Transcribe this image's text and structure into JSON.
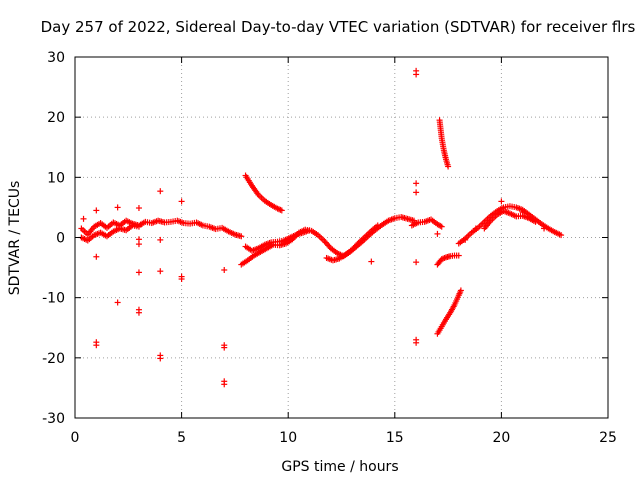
{
  "chart_data": {
    "type": "scatter",
    "title": "Day 257 of 2022, Sidereal Day-to-day VTEC variation (SDTVAR) for receiver flrs",
    "xlabel": "GPS time / hours",
    "ylabel": "SDTVAR / TECUs",
    "xlim": [
      0,
      25
    ],
    "ylim": [
      -30,
      30
    ],
    "xticks": [
      0,
      5,
      10,
      15,
      20,
      25
    ],
    "yticks": [
      -30,
      -20,
      -10,
      0,
      10,
      20,
      30
    ],
    "xtick_labels": [
      "0",
      "5",
      "10",
      "15",
      "20",
      "25"
    ],
    "ytick_labels": [
      "-30",
      "-20",
      "-10",
      "0",
      "10",
      "20",
      "30"
    ],
    "grid": true,
    "marker": "+",
    "series": [
      {
        "name": "SDTVAR",
        "color": "#ff0000",
        "segments": [
          [
            [
              0.3,
              1.5
            ],
            [
              0.6,
              0.5
            ],
            [
              0.9,
              1.8
            ],
            [
              1.2,
              2.4
            ],
            [
              1.5,
              1.6
            ],
            [
              1.8,
              2.5
            ],
            [
              2.1,
              2.0
            ],
            [
              2.4,
              2.8
            ],
            [
              2.7,
              2.3
            ],
            [
              3.0,
              2.0
            ],
            [
              3.3,
              2.6
            ],
            [
              3.6,
              2.4
            ],
            [
              3.9,
              2.8
            ],
            [
              4.2,
              2.5
            ],
            [
              4.5,
              2.6
            ],
            [
              4.8,
              2.8
            ],
            [
              5.1,
              2.4
            ],
            [
              5.4,
              2.3
            ],
            [
              5.7,
              2.5
            ],
            [
              6.0,
              2.0
            ],
            [
              6.3,
              1.8
            ],
            [
              6.6,
              1.4
            ],
            [
              6.9,
              1.6
            ],
            [
              7.2,
              1.0
            ],
            [
              7.5,
              0.5
            ],
            [
              7.8,
              0.2
            ]
          ],
          [
            [
              0.3,
              0.0
            ],
            [
              0.6,
              -0.5
            ],
            [
              0.9,
              0.4
            ],
            [
              1.2,
              0.8
            ],
            [
              1.5,
              0.2
            ],
            [
              1.8,
              1.0
            ],
            [
              2.1,
              1.5
            ],
            [
              2.4,
              1.2
            ],
            [
              2.7,
              2.0
            ],
            [
              3.0,
              1.8
            ]
          ],
          [
            [
              7.8,
              -4.5
            ],
            [
              8.1,
              -3.8
            ],
            [
              8.4,
              -3.0
            ],
            [
              8.7,
              -2.4
            ],
            [
              9.0,
              -1.8
            ],
            [
              9.3,
              -1.2
            ],
            [
              9.6,
              -1.3
            ],
            [
              9.9,
              -1.0
            ],
            [
              10.2,
              -0.3
            ],
            [
              10.5,
              0.8
            ],
            [
              10.8,
              1.3
            ],
            [
              11.1,
              1.1
            ],
            [
              11.4,
              0.4
            ],
            [
              11.7,
              -0.6
            ],
            [
              12.0,
              -1.8
            ],
            [
              12.3,
              -2.6
            ],
            [
              12.6,
              -3.1
            ],
            [
              12.9,
              -2.4
            ],
            [
              13.2,
              -1.5
            ],
            [
              13.5,
              -0.6
            ],
            [
              13.8,
              0.4
            ],
            [
              14.1,
              1.3
            ],
            [
              14.4,
              2.1
            ],
            [
              14.7,
              2.8
            ],
            [
              15.0,
              3.2
            ],
            [
              15.3,
              3.4
            ],
            [
              15.6,
              3.1
            ],
            [
              15.9,
              2.8
            ]
          ],
          [
            [
              8.0,
              -1.5
            ],
            [
              8.3,
              -2.2
            ],
            [
              8.6,
              -1.8
            ],
            [
              8.9,
              -1.2
            ],
            [
              9.2,
              -0.8
            ],
            [
              9.5,
              -0.7
            ],
            [
              9.8,
              -0.5
            ],
            [
              10.1,
              0.0
            ],
            [
              10.4,
              0.5
            ],
            [
              10.7,
              0.8
            ],
            [
              11.0,
              1.2
            ]
          ],
          [
            [
              11.8,
              -3.4
            ],
            [
              12.1,
              -3.8
            ],
            [
              12.4,
              -3.5
            ],
            [
              12.7,
              -2.8
            ],
            [
              13.0,
              -2.0
            ],
            [
              13.3,
              -0.9
            ],
            [
              13.6,
              0.1
            ],
            [
              13.9,
              1.1
            ],
            [
              14.2,
              2.0
            ]
          ],
          [
            [
              8.0,
              10.3
            ],
            [
              8.3,
              8.6
            ],
            [
              8.6,
              7.1
            ],
            [
              8.9,
              6.1
            ],
            [
              9.2,
              5.4
            ],
            [
              9.5,
              4.8
            ],
            [
              9.7,
              4.5
            ]
          ],
          [
            [
              15.8,
              2.0
            ],
            [
              16.1,
              2.5
            ],
            [
              16.4,
              2.6
            ],
            [
              16.7,
              3.0
            ],
            [
              17.0,
              2.2
            ],
            [
              17.2,
              1.8
            ]
          ],
          [
            [
              17.1,
              19.5
            ],
            [
              17.2,
              16.5
            ],
            [
              17.3,
              14.5
            ],
            [
              17.4,
              13.0
            ],
            [
              17.5,
              11.8
            ]
          ],
          [
            [
              17.0,
              -4.5
            ],
            [
              17.2,
              -3.6
            ],
            [
              17.4,
              -3.3
            ],
            [
              17.6,
              -3.1
            ],
            [
              17.8,
              -3.0
            ],
            [
              18.0,
              -3.0
            ]
          ],
          [
            [
              17.0,
              -16.0
            ],
            [
              17.2,
              -14.8
            ],
            [
              17.4,
              -13.6
            ],
            [
              17.6,
              -12.5
            ],
            [
              17.8,
              -11.2
            ],
            [
              18.0,
              -9.6
            ],
            [
              18.1,
              -8.8
            ]
          ],
          [
            [
              18.0,
              -1.0
            ],
            [
              18.3,
              -0.2
            ],
            [
              18.6,
              0.8
            ],
            [
              18.9,
              1.6
            ],
            [
              19.2,
              2.6
            ],
            [
              19.5,
              3.6
            ],
            [
              19.8,
              4.4
            ],
            [
              20.1,
              5.0
            ],
            [
              20.4,
              5.2
            ],
            [
              20.7,
              5.0
            ],
            [
              21.0,
              4.6
            ],
            [
              21.3,
              3.8
            ],
            [
              21.6,
              3.0
            ],
            [
              21.9,
              2.2
            ],
            [
              22.2,
              1.5
            ],
            [
              22.5,
              0.9
            ],
            [
              22.8,
              0.4
            ]
          ],
          [
            [
              19.2,
              1.5
            ],
            [
              19.5,
              2.8
            ],
            [
              19.8,
              3.8
            ],
            [
              20.1,
              4.4
            ],
            [
              20.4,
              4.0
            ],
            [
              20.7,
              3.5
            ],
            [
              21.0,
              3.6
            ],
            [
              21.3,
              3.2
            ],
            [
              21.6,
              2.6
            ]
          ]
        ],
        "points": [
          [
            0.4,
            3.1
          ],
          [
            1.0,
            4.5
          ],
          [
            1.0,
            -3.2
          ],
          [
            1.0,
            -17.4
          ],
          [
            1.0,
            -17.9
          ],
          [
            2.0,
            5.0
          ],
          [
            2.0,
            -10.8
          ],
          [
            3.0,
            4.9
          ],
          [
            3.0,
            -0.3
          ],
          [
            3.0,
            -1.1
          ],
          [
            3.0,
            -5.8
          ],
          [
            3.0,
            -12.0
          ],
          [
            3.0,
            -12.5
          ],
          [
            4.0,
            7.7
          ],
          [
            4.0,
            -0.4
          ],
          [
            4.0,
            -5.6
          ],
          [
            4.0,
            -19.6
          ],
          [
            4.0,
            -20.1
          ],
          [
            5.0,
            6.0
          ],
          [
            5.0,
            -6.5
          ],
          [
            5.0,
            -6.9
          ],
          [
            7.0,
            -5.4
          ],
          [
            7.0,
            -17.9
          ],
          [
            7.0,
            -18.3
          ],
          [
            7.0,
            -23.9
          ],
          [
            7.0,
            -24.4
          ],
          [
            13.9,
            -4.0
          ],
          [
            16.0,
            27.7
          ],
          [
            16.0,
            27.1
          ],
          [
            16.0,
            9.0
          ],
          [
            16.0,
            7.5
          ],
          [
            16.0,
            -4.1
          ],
          [
            16.0,
            -17.0
          ],
          [
            16.0,
            -17.5
          ],
          [
            17.0,
            0.6
          ],
          [
            18.3,
            -0.4
          ],
          [
            18.8,
            1.5
          ],
          [
            20.0,
            6.0
          ],
          [
            21.0,
            4.2
          ],
          [
            22.0,
            1.5
          ]
        ]
      }
    ]
  }
}
